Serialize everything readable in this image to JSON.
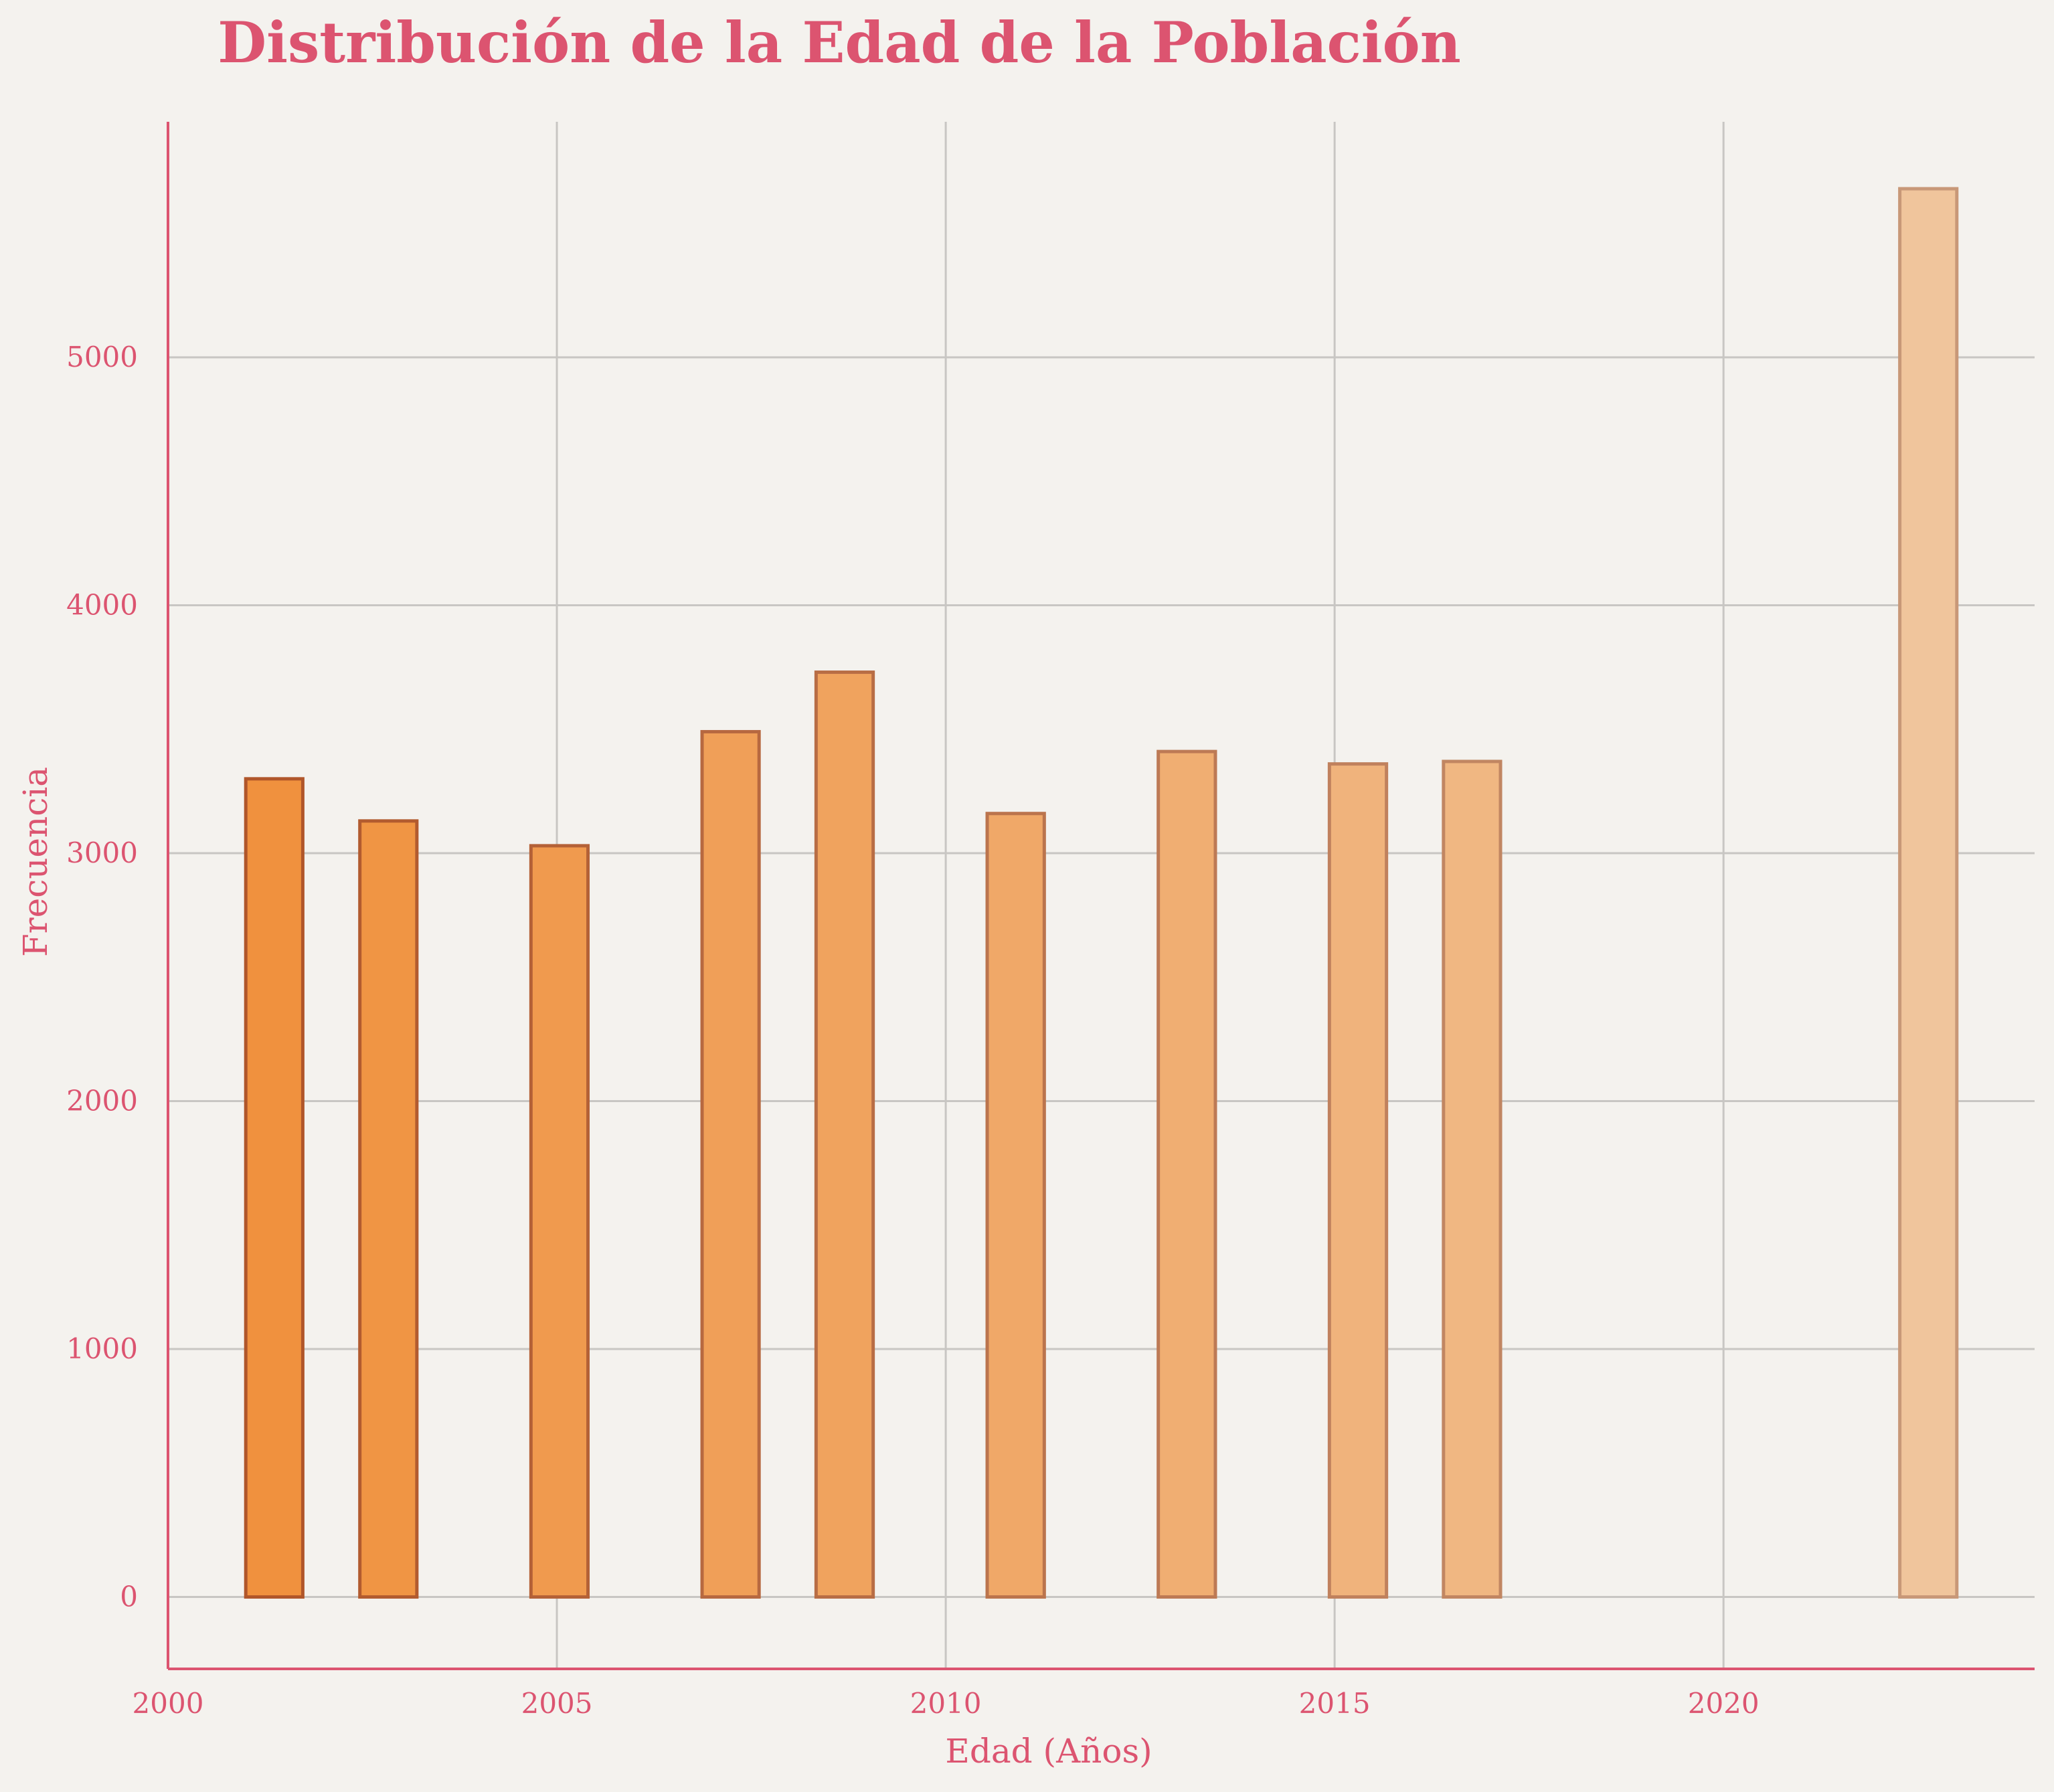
{
  "chart_data": {
    "type": "bar",
    "title": "Distribución de la Edad de la Población",
    "xlabel": "Edad (Años)",
    "ylabel": "Frecuencia",
    "xlim": [
      2000,
      2024
    ],
    "ylim": [
      -290,
      5950
    ],
    "x_ticks": [
      2000,
      2005,
      2010,
      2015,
      2020
    ],
    "y_ticks": [
      0,
      1000,
      2000,
      3000,
      4000,
      5000
    ],
    "grid": true,
    "legend": "none",
    "bin_edges": [
      2001.0,
      2001.733,
      2002.467,
      2003.2,
      2003.933,
      2004.667,
      2005.4,
      2006.133,
      2006.867,
      2007.6,
      2008.333,
      2009.067,
      2009.8,
      2010.533,
      2011.267,
      2012.0,
      2012.733,
      2013.467,
      2014.2,
      2014.933,
      2015.667,
      2016.4,
      2017.133,
      2017.867,
      2018.6,
      2019.333,
      2020.067,
      2020.8,
      2021.533,
      2022.267,
      2023.0
    ],
    "bins": [
      {
        "x": 2001.367,
        "value": 3300
      },
      {
        "x": 2002.1,
        "value": 0
      },
      {
        "x": 2002.833,
        "value": 3130
      },
      {
        "x": 2003.567,
        "value": 0
      },
      {
        "x": 2004.3,
        "value": 0
      },
      {
        "x": 2005.033,
        "value": 3030
      },
      {
        "x": 2005.767,
        "value": 0
      },
      {
        "x": 2006.5,
        "value": 0
      },
      {
        "x": 2007.233,
        "value": 3490
      },
      {
        "x": 2007.967,
        "value": 0
      },
      {
        "x": 2008.7,
        "value": 3730
      },
      {
        "x": 2009.433,
        "value": 0
      },
      {
        "x": 2010.167,
        "value": 0
      },
      {
        "x": 2010.9,
        "value": 3160
      },
      {
        "x": 2011.633,
        "value": 0
      },
      {
        "x": 2012.367,
        "value": 0
      },
      {
        "x": 2013.1,
        "value": 3410
      },
      {
        "x": 2013.833,
        "value": 0
      },
      {
        "x": 2014.567,
        "value": 0
      },
      {
        "x": 2015.3,
        "value": 3360
      },
      {
        "x": 2016.033,
        "value": 0
      },
      {
        "x": 2016.767,
        "value": 3370
      },
      {
        "x": 2017.5,
        "value": 0
      },
      {
        "x": 2018.233,
        "value": 0
      },
      {
        "x": 2018.967,
        "value": 0
      },
      {
        "x": 2019.7,
        "value": 0
      },
      {
        "x": 2020.433,
        "value": 0
      },
      {
        "x": 2021.167,
        "value": 0
      },
      {
        "x": 2021.9,
        "value": 0
      },
      {
        "x": 2022.633,
        "value": 5680
      }
    ],
    "colors": {
      "title": "#dc5470",
      "axis": "#dc5470",
      "grid": "#c8c6c3",
      "background": "#f4f2ee",
      "bar_start": "#f0913e",
      "bar_end": "#f0c59c",
      "edge_start": "#b0562a",
      "edge_end": "#c89878"
    }
  }
}
